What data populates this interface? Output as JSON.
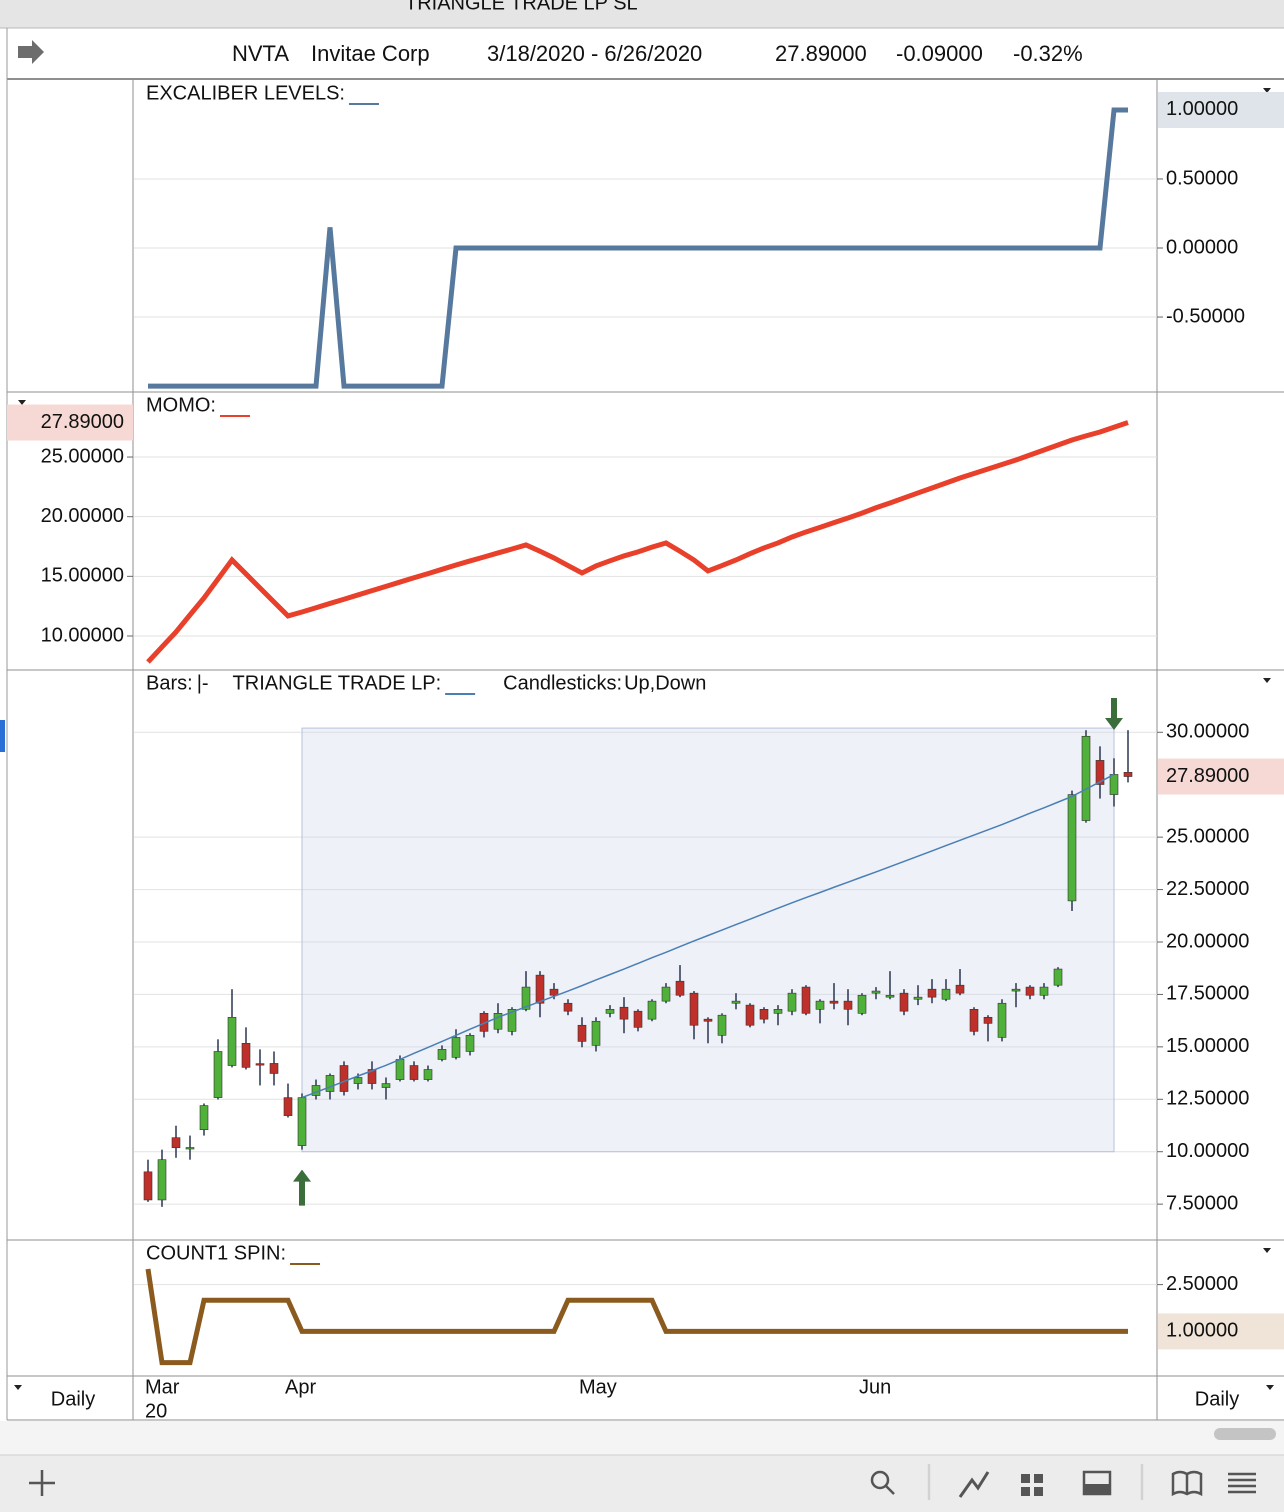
{
  "window_title": "TRIANGLE TRADE LP SL",
  "header": {
    "symbol": "NVTA",
    "name": "Invitae Corp",
    "date_range": "3/18/2020 - 6/26/2020",
    "last": "27.89000",
    "change": "-0.09000",
    "change_pct": "-0.32%"
  },
  "x_axis": {
    "categories": [
      "Mar",
      null,
      null,
      null,
      null,
      null,
      null,
      null,
      null,
      null,
      "Apr",
      null,
      null,
      null,
      null,
      null,
      null,
      null,
      null,
      null,
      null,
      null,
      null,
      null,
      null,
      null,
      null,
      null,
      null,
      null,
      null,
      "May",
      null,
      null,
      null,
      null,
      null,
      null,
      null,
      null,
      null,
      null,
      null,
      null,
      null,
      null,
      null,
      null,
      null,
      null,
      null,
      "Jun",
      null,
      null,
      null,
      null,
      null,
      null,
      null,
      null,
      null,
      null,
      null,
      null,
      null,
      null,
      null,
      null,
      null,
      null,
      null
    ],
    "year_label": "20"
  },
  "footer": {
    "interval_left": "Daily",
    "interval_right": "Daily"
  },
  "chart_data": [
    {
      "type": "line",
      "axis_side": "right",
      "ylim": [
        -1.043,
        1.217
      ],
      "yticks": [
        {
          "value": 0.5,
          "label": "0.50000"
        },
        {
          "value": 0,
          "label": "0.00000"
        },
        {
          "value": -0.5,
          "label": "-0.50000"
        }
      ],
      "grid": true,
      "last_label": "1.00000",
      "last_label_color": "#3a5a80",
      "last_label_bg": "#dfe4ea",
      "series": [
        {
          "name": "EXCALIBER LEVELS:",
          "color": "#57799e",
          "values": [
            -1,
            -1,
            -1,
            -1,
            -1,
            -1,
            -1,
            -1,
            -1,
            -1,
            -1,
            -1,
            -1,
            0.15,
            -1,
            -1,
            -1,
            -1,
            -1,
            -1,
            -1,
            -1,
            0,
            0,
            0,
            0,
            0,
            0,
            0,
            0,
            0,
            0,
            0,
            0,
            0,
            0,
            0,
            0,
            0,
            0,
            0,
            0,
            0,
            0,
            0,
            0,
            0,
            0,
            0,
            0,
            0,
            0,
            0,
            0,
            0,
            0,
            0,
            0,
            0,
            0,
            0,
            0,
            0,
            0,
            0,
            0,
            0,
            0,
            0,
            1,
            1
          ]
        }
      ]
    },
    {
      "type": "line",
      "axis_side": "left",
      "ylim": [
        7.15,
        30.45
      ],
      "yticks": [
        {
          "value": 25,
          "label": "25.00000"
        },
        {
          "value": 20,
          "label": "20.00000"
        },
        {
          "value": 15,
          "label": "15.00000"
        },
        {
          "value": 10,
          "label": "10.00000"
        }
      ],
      "grid": true,
      "last_label": "27.89000",
      "last_label_color": "#b5301f",
      "last_label_bg": "#f6d9d4",
      "series": [
        {
          "name": "MOMO:",
          "color": "#e8402a",
          "values": [
            7.82,
            9.08,
            10.34,
            11.77,
            13.19,
            14.78,
            16.37,
            15.2,
            14.02,
            12.85,
            11.68,
            12.01,
            12.37,
            12.73,
            13.08,
            13.44,
            13.8,
            14.16,
            14.52,
            14.88,
            15.23,
            15.59,
            15.95,
            16.29,
            16.62,
            16.96,
            17.29,
            17.63,
            17.1,
            16.54,
            15.9,
            15.28,
            15.87,
            16.3,
            16.71,
            17.05,
            17.45,
            17.8,
            17.1,
            16.37,
            15.45,
            15.9,
            16.37,
            16.9,
            17.38,
            17.8,
            18.3,
            18.72,
            19.1,
            19.5,
            19.89,
            20.3,
            20.75,
            21.15,
            21.57,
            21.99,
            22.4,
            22.82,
            23.24,
            23.62,
            24.0,
            24.37,
            24.75,
            25.17,
            25.59,
            26.01,
            26.43,
            26.77,
            27.1,
            27.5,
            27.89
          ]
        }
      ]
    },
    {
      "type": "candlestick",
      "axis_side": "right",
      "ylim": [
        5.79,
        32.97
      ],
      "yticks": [
        {
          "value": 30,
          "label": "30.00000"
        },
        {
          "value": 25,
          "label": "25.00000"
        },
        {
          "value": 22.5,
          "label": "22.50000"
        },
        {
          "value": 20,
          "label": "20.00000"
        },
        {
          "value": 17.5,
          "label": "17.50000"
        },
        {
          "value": 15,
          "label": "15.00000"
        },
        {
          "value": 12.5,
          "label": "12.50000"
        },
        {
          "value": 10,
          "label": "10.00000"
        },
        {
          "value": 7.5,
          "label": "7.50000"
        }
      ],
      "grid": true,
      "last_label": "27.89000",
      "last_label_color": "#b5301f",
      "last_label_bg": "#f6d9d4",
      "legend": {
        "bars": "Bars:",
        "bars_symbol": "|-",
        "candles": "Candlesticks:",
        "up": "Up",
        "separator": ",",
        "down": "Down"
      },
      "up_color": "#4fb03a",
      "down_color": "#c0302a",
      "wick_color": "#2a3550",
      "open": [
        9.04,
        7.7,
        10.67,
        10.15,
        11.05,
        12.58,
        14.11,
        15.17,
        14.2,
        14.21,
        12.58,
        10.29,
        12.68,
        12.87,
        14.11,
        13.25,
        13.92,
        13.06,
        13.44,
        14.11,
        13.44,
        14.4,
        14.5,
        14.78,
        16.6,
        15.84,
        15.74,
        16.79,
        18.42,
        17.75,
        17.08,
        16.03,
        15.07,
        16.6,
        16.89,
        16.7,
        16.32,
        17.18,
        18.13,
        17.56,
        16.32,
        15.55,
        17.08,
        16.99,
        16.79,
        16.6,
        16.7,
        17.85,
        16.79,
        17.18,
        17.18,
        16.6,
        17.56,
        17.37,
        17.56,
        17.27,
        17.75,
        17.27,
        17.94,
        16.79,
        16.41,
        15.45,
        17.66,
        17.85,
        17.46,
        17.94,
        21.96,
        25.79,
        28.66,
        27.03,
        28.09
      ],
      "high": [
        9.62,
        10.1,
        11.24,
        10.77,
        12.3,
        15.36,
        17.75,
        15.93,
        14.88,
        14.78,
        13.25,
        12.78,
        13.44,
        13.73,
        14.31,
        13.73,
        14.31,
        13.54,
        14.59,
        14.31,
        14.11,
        15.07,
        15.84,
        15.65,
        16.7,
        17.08,
        16.89,
        18.61,
        18.61,
        18.04,
        17.27,
        16.41,
        16.41,
        16.99,
        17.37,
        16.79,
        17.27,
        18.04,
        18.9,
        17.66,
        16.41,
        16.6,
        17.56,
        17.08,
        16.89,
        16.99,
        17.75,
        17.94,
        17.27,
        18.04,
        17.75,
        17.56,
        17.85,
        18.61,
        17.75,
        17.94,
        18.23,
        18.23,
        18.71,
        16.89,
        16.51,
        17.27,
        18.04,
        17.94,
        18.04,
        18.8,
        27.22,
        30.1,
        29.33,
        28.76,
        30.1
      ],
      "low": [
        7.61,
        7.37,
        9.71,
        9.62,
        10.77,
        12.49,
        14.02,
        13.92,
        13.16,
        13.16,
        11.63,
        10.1,
        12.49,
        12.49,
        12.68,
        12.97,
        12.97,
        12.49,
        13.35,
        13.35,
        13.35,
        14.31,
        14.4,
        14.59,
        15.45,
        15.65,
        15.55,
        16.7,
        16.41,
        17.27,
        16.51,
        14.98,
        14.78,
        16.41,
        15.65,
        15.74,
        16.22,
        17.08,
        17.37,
        15.36,
        15.17,
        15.17,
        16.79,
        15.93,
        16.12,
        16.03,
        16.51,
        16.51,
        16.12,
        16.79,
        16.03,
        16.51,
        17.27,
        17.27,
        16.51,
        16.99,
        17.08,
        17.18,
        17.46,
        15.55,
        15.26,
        15.26,
        16.89,
        17.27,
        17.27,
        17.85,
        21.48,
        25.69,
        26.84,
        26.46,
        27.61
      ],
      "close": [
        7.7,
        9.62,
        10.19,
        10.2,
        12.2,
        14.78,
        16.41,
        14.02,
        14.16,
        13.73,
        11.72,
        12.58,
        13.16,
        13.64,
        12.87,
        13.54,
        13.25,
        13.25,
        14.4,
        13.44,
        13.92,
        14.88,
        15.45,
        15.55,
        15.74,
        16.6,
        16.79,
        17.85,
        17.08,
        17.46,
        16.7,
        15.26,
        16.22,
        16.79,
        16.32,
        15.93,
        17.18,
        17.85,
        17.46,
        16.03,
        16.22,
        16.51,
        17.18,
        16.03,
        16.32,
        16.79,
        17.56,
        16.6,
        17.18,
        17.08,
        16.79,
        17.46,
        17.66,
        17.46,
        16.7,
        17.37,
        17.37,
        17.75,
        17.56,
        15.74,
        16.12,
        17.08,
        17.75,
        17.46,
        17.85,
        18.71,
        27.03,
        29.81,
        27.51,
        27.99,
        27.89
      ],
      "zone": {
        "from": 11,
        "to": 69,
        "bottom": 10.0,
        "top": 30.2
      },
      "signals": {
        "buy": 11,
        "sell": 69
      },
      "signal_color": "#3c6e3c",
      "series": [
        {
          "name": "TRIANGLE TRADE LP:",
          "color": "#4a7fb5",
          "values": [
            null,
            null,
            null,
            null,
            null,
            null,
            null,
            null,
            null,
            null,
            null,
            12.58,
            12.84,
            13.09,
            13.35,
            13.61,
            13.86,
            14.12,
            14.4,
            14.69,
            14.97,
            15.26,
            15.55,
            15.84,
            16.12,
            16.41,
            16.66,
            16.91,
            17.16,
            17.41,
            17.66,
            17.92,
            18.19,
            18.45,
            18.71,
            18.98,
            19.25,
            19.51,
            19.78,
            20.05,
            20.31,
            20.57,
            20.83,
            21.09,
            21.35,
            21.61,
            21.87,
            22.12,
            22.36,
            22.61,
            22.85,
            23.1,
            23.34,
            23.59,
            23.84,
            24.09,
            24.34,
            24.6,
            24.85,
            25.1,
            25.35,
            25.6,
            25.87,
            26.14,
            26.4,
            26.67,
            26.94,
            27.29,
            27.64,
            27.99,
            null
          ]
        }
      ]
    },
    {
      "type": "line",
      "axis_side": "right",
      "ylim": [
        -0.43,
        3.93
      ],
      "yticks": [
        {
          "value": 2.5,
          "label": "2.50000"
        }
      ],
      "grid": true,
      "last_label": "1.00000",
      "last_label_color": "#7a4a18",
      "last_label_bg": "#efe4d7",
      "series": [
        {
          "name": "COUNT1 SPIN:",
          "color": "#8b5a1e",
          "values": [
            3,
            0,
            0,
            0,
            2,
            2,
            2,
            2,
            2,
            2,
            2,
            1,
            1,
            1,
            1,
            1,
            1,
            1,
            1,
            1,
            1,
            1,
            1,
            1,
            1,
            1,
            1,
            1,
            1,
            1,
            2,
            2,
            2,
            2,
            2,
            2,
            2,
            1,
            1,
            1,
            1,
            1,
            1,
            1,
            1,
            1,
            1,
            1,
            1,
            1,
            1,
            1,
            1,
            1,
            1,
            1,
            1,
            1,
            1,
            1,
            1,
            1,
            1,
            1,
            1,
            1,
            1,
            1,
            1,
            1,
            1
          ]
        }
      ]
    }
  ]
}
